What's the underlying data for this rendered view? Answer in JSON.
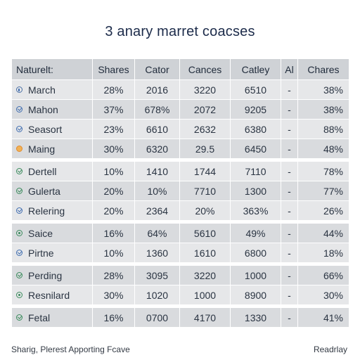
{
  "title": "3 anary marret coacses",
  "table": {
    "headers": [
      "Naturelt:",
      "Shares",
      "Cator",
      "Cances",
      "Catley",
      "Al",
      "Chares"
    ],
    "rows": [
      {
        "icon": "info",
        "cells": [
          "March",
          "28%",
          "2016",
          "3220",
          "6510",
          "-",
          "38%"
        ]
      },
      {
        "icon": "check",
        "cells": [
          "Mahon",
          "37%",
          "678%",
          "2072",
          "9205",
          "-",
          "38%"
        ]
      },
      {
        "icon": "check",
        "cells": [
          "Seasort",
          "23%",
          "6610",
          "2632",
          "6380",
          "-",
          "88%"
        ]
      },
      {
        "icon": "warn",
        "cells": [
          "Maing",
          "30%",
          "6320",
          "29.5",
          "6450",
          "-",
          "48%"
        ]
      },
      {
        "icon": "green",
        "cells": [
          "Dertell",
          "10%",
          "1410",
          "1744",
          "7110",
          "-",
          "78%"
        ]
      },
      {
        "icon": "green",
        "cells": [
          "Gulerta",
          "20%",
          "10%",
          "7710",
          "1300",
          "-",
          "77%"
        ]
      },
      {
        "icon": "check",
        "cells": [
          "Relering",
          "20%",
          "2364",
          "20%",
          "363%",
          "-",
          "26%"
        ]
      },
      {
        "icon": "dot",
        "cells": [
          "Saice",
          "16%",
          "64%",
          "5610",
          "49%",
          "-",
          "44%"
        ]
      },
      {
        "icon": "check",
        "cells": [
          "Pirtne",
          "10%",
          "1360",
          "1610",
          "6800",
          "-",
          "18%"
        ]
      },
      {
        "icon": "green",
        "cells": [
          "Perding",
          "28%",
          "3095",
          "3220",
          "1000",
          "-",
          "66%"
        ]
      },
      {
        "icon": "dot",
        "cells": [
          "Resnilard",
          "30%",
          "1020",
          "1000",
          "8900",
          "-",
          "30%"
        ]
      },
      {
        "icon": "green",
        "cells": [
          "Fetal",
          "16%",
          "0700",
          "4170",
          "1330",
          "-",
          "41%"
        ]
      }
    ]
  },
  "footer": {
    "left": "Sharig, Plerest Apporting Fcave",
    "right": "Readrlay"
  }
}
